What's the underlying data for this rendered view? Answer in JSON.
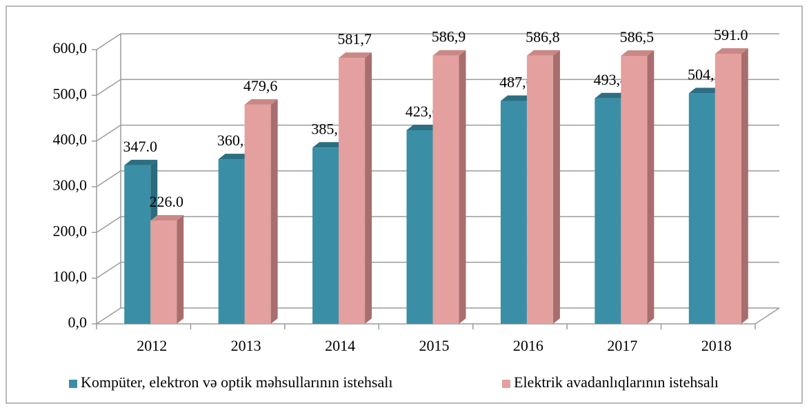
{
  "chart_data": {
    "type": "bar3d",
    "categories": [
      "2012",
      "2013",
      "2014",
      "2015",
      "2016",
      "2017",
      "2018"
    ],
    "series": [
      {
        "name": "Kompüter, elektron və optik məhsullarının istehsalı",
        "color": "#3a8fa6",
        "values": [
          347.0,
          360.2,
          385.5,
          423.6,
          487.6,
          493.4,
          504.5
        ],
        "value_labels": [
          "347.0",
          "360,2",
          "385,5",
          "423,6",
          "487,6",
          "493,4",
          "504,5"
        ]
      },
      {
        "name": "Elektrik avadanlıqlarının istehsalı",
        "color": "#e3a09e",
        "values": [
          226.0,
          479.6,
          581.7,
          586.9,
          586.8,
          586.5,
          591.0
        ],
        "value_labels": [
          "226.0",
          "479,6",
          "581,7",
          "586,9",
          "586,8",
          "586,5",
          "591.0"
        ]
      }
    ],
    "ylim": [
      0,
      600
    ],
    "yticks": [
      {
        "value": 0,
        "label": "0,0"
      },
      {
        "value": 100,
        "label": "100,0"
      },
      {
        "value": 200,
        "label": "200,0"
      },
      {
        "value": 300,
        "label": "300,0"
      },
      {
        "value": 400,
        "label": "400,0"
      },
      {
        "value": 500,
        "label": "500,0"
      },
      {
        "value": 600,
        "label": "600,0"
      }
    ],
    "grid": true,
    "legend": "bottom"
  }
}
